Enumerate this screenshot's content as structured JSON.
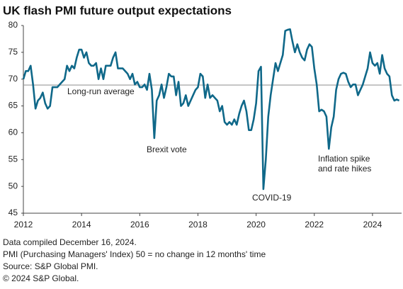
{
  "chart_data": {
    "type": "line",
    "title": "UK flash PMI future output expectations",
    "x": [
      2012,
      2012.083,
      2012.167,
      2012.25,
      2012.333,
      2012.417,
      2012.5,
      2012.583,
      2012.667,
      2012.75,
      2012.833,
      2012.917,
      2013,
      2013.083,
      2013.167,
      2013.25,
      2013.333,
      2013.417,
      2013.5,
      2013.583,
      2013.667,
      2013.75,
      2013.833,
      2013.917,
      2014,
      2014.083,
      2014.167,
      2014.25,
      2014.333,
      2014.417,
      2014.5,
      2014.583,
      2014.667,
      2014.75,
      2014.833,
      2014.917,
      2015,
      2015.083,
      2015.167,
      2015.25,
      2015.333,
      2015.417,
      2015.5,
      2015.583,
      2015.667,
      2015.75,
      2015.833,
      2015.917,
      2016,
      2016.083,
      2016.167,
      2016.25,
      2016.333,
      2016.417,
      2016.5,
      2016.583,
      2016.667,
      2016.75,
      2016.833,
      2016.917,
      2017,
      2017.083,
      2017.167,
      2017.25,
      2017.333,
      2017.417,
      2017.5,
      2017.583,
      2017.667,
      2017.75,
      2017.833,
      2017.917,
      2018,
      2018.083,
      2018.167,
      2018.25,
      2018.333,
      2018.417,
      2018.5,
      2018.583,
      2018.667,
      2018.75,
      2018.833,
      2018.917,
      2019,
      2019.083,
      2019.167,
      2019.25,
      2019.333,
      2019.417,
      2019.5,
      2019.583,
      2019.667,
      2019.75,
      2019.833,
      2019.917,
      2020,
      2020.083,
      2020.167,
      2020.25,
      2020.333,
      2020.417,
      2020.5,
      2020.583,
      2020.667,
      2020.75,
      2020.833,
      2020.917,
      2021,
      2021.083,
      2021.167,
      2021.25,
      2021.333,
      2021.417,
      2021.5,
      2021.583,
      2021.667,
      2021.75,
      2021.833,
      2021.917,
      2022,
      2022.083,
      2022.167,
      2022.25,
      2022.333,
      2022.417,
      2022.5,
      2022.583,
      2022.667,
      2022.75,
      2022.833,
      2022.917,
      2023,
      2023.083,
      2023.167,
      2023.25,
      2023.333,
      2023.417,
      2023.5,
      2023.583,
      2023.667,
      2023.75,
      2023.833,
      2023.917,
      2024,
      2024.083,
      2024.167,
      2024.25,
      2024.333,
      2024.417,
      2024.5,
      2024.583,
      2024.667,
      2024.75,
      2024.833,
      2024.917
    ],
    "series": [
      {
        "name": "Future output expectations",
        "color": "#0f6889",
        "values": [
          70,
          71.5,
          71.5,
          72.5,
          69,
          64.5,
          66,
          66.5,
          67.5,
          65.5,
          64.5,
          65,
          68.5,
          68.5,
          68.5,
          69,
          69.5,
          70,
          72.5,
          71.5,
          72.5,
          72,
          74,
          75.5,
          75.5,
          74,
          75,
          73,
          72.5,
          72.5,
          73,
          70,
          72,
          70,
          72.5,
          72.5,
          72.5,
          74,
          75,
          72,
          72,
          72,
          71.5,
          71,
          70,
          71,
          69,
          69.5,
          68.5,
          68.5,
          69,
          68,
          71,
          68,
          59,
          66,
          67,
          69,
          66.5,
          68.5,
          71,
          70.5,
          70.5,
          67,
          69.5,
          65,
          65.5,
          67,
          65,
          66,
          67,
          68,
          68.5,
          71,
          70.5,
          66.5,
          69,
          66.5,
          67,
          66.5,
          66,
          64,
          65,
          62,
          61.5,
          62,
          61.5,
          62.5,
          61.5,
          63.5,
          65,
          66,
          64,
          60.5,
          60.5,
          62.5,
          65.5,
          71.5,
          72.3,
          49.5,
          55,
          63,
          67,
          70,
          73,
          71.5,
          73,
          74.5,
          79,
          79.2,
          79.3,
          77,
          75,
          76.5,
          75,
          74,
          73.5,
          75.5,
          76.5,
          76,
          72,
          69,
          64,
          64.3,
          64,
          63,
          57,
          61,
          63,
          68,
          70,
          71,
          71.2,
          71,
          69.5,
          68.5,
          69,
          69,
          67,
          68,
          69,
          70.5,
          72,
          75,
          73,
          72.5,
          73,
          71,
          74.5,
          72,
          71,
          70.5,
          67,
          66,
          66.2,
          66
        ]
      }
    ],
    "xlim": [
      2012,
      2025
    ],
    "xticks": [
      2012,
      2014,
      2016,
      2018,
      2020,
      2022,
      2024
    ],
    "ylim": [
      45,
      80
    ],
    "yticks": [
      45,
      50,
      55,
      60,
      65,
      70,
      75,
      80
    ],
    "grid": false,
    "reference_line": {
      "value": 68.9,
      "label": "Long-run average",
      "color": "#999999"
    },
    "annotations": [
      {
        "lines": [
          "Brexit vote"
        ]
      },
      {
        "lines": [
          "COVID-19"
        ]
      },
      {
        "lines": [
          "Inflation spike",
          "and rate hikes"
        ]
      }
    ],
    "footnotes": [
      "Data compiled December 16, 2024.",
      "PMI (Purchasing Managers' Index) 50 = no change in 12 months' time",
      "Source: S&P Global PMI.",
      "© 2024 S&P Global."
    ]
  }
}
